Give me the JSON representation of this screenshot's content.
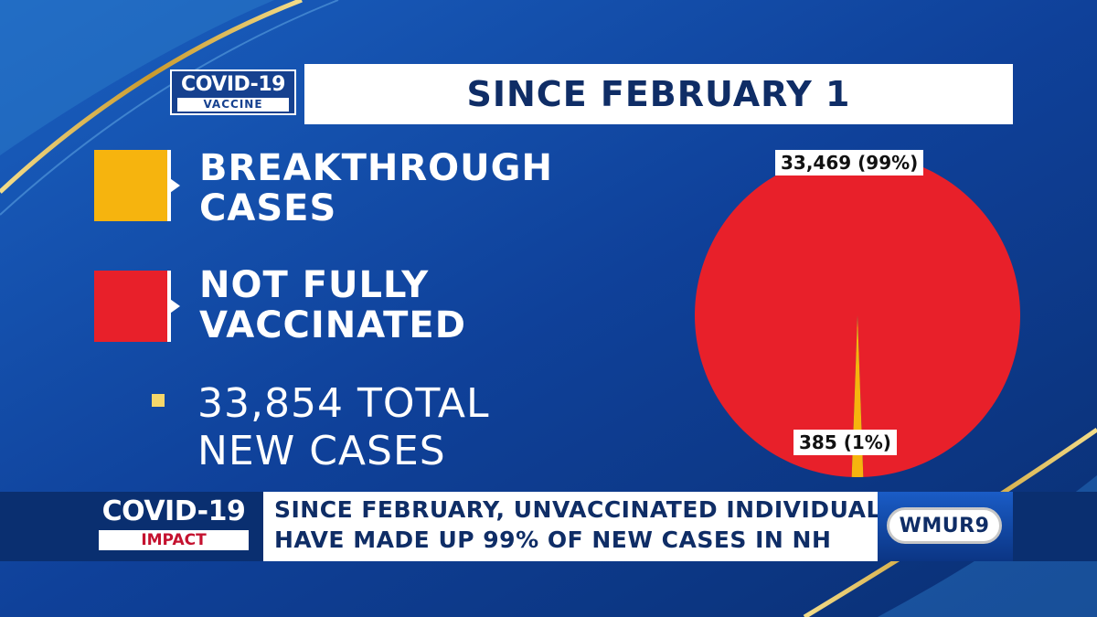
{
  "header": {
    "logo_top": {
      "big": "COVID-19",
      "small": "VACCINE"
    },
    "title": "SINCE FEBRUARY 1"
  },
  "legend": [
    {
      "line1": "BREAKTHROUGH",
      "line2": "CASES",
      "color": "#f6b40e"
    },
    {
      "line1": "NOT FULLY",
      "line2": "VACCINATED",
      "color": "#e8202a"
    }
  ],
  "total": {
    "line1": "33,854 TOTAL",
    "line2": "NEW CASES"
  },
  "chart_data": {
    "type": "pie",
    "slices": [
      {
        "name": "Not fully vaccinated",
        "value": 33469,
        "percent": 99,
        "label": "33,469 (99%)",
        "color": "#e8202a"
      },
      {
        "name": "Breakthrough cases",
        "value": 385,
        "percent": 1,
        "label": "385 (1%)",
        "color": "#f6b40e"
      }
    ],
    "total": 33854
  },
  "lower_third": {
    "logo": {
      "big": "COVID-19",
      "small": "IMPACT"
    },
    "line1": "SINCE FEBRUARY, UNVACCINATED INDIVIDUALS",
    "line2": "HAVE MADE UP 99% OF NEW CASES IN NH",
    "station": "WMUR9"
  },
  "colors": {
    "background": "#0d3a86",
    "gold": "#d9b44a",
    "title_text": "#0f2d66"
  }
}
